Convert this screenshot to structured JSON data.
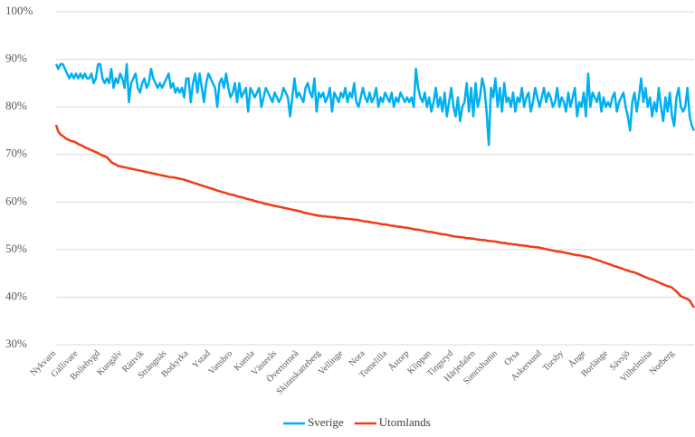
{
  "chart_data": {
    "type": "line",
    "ylim": [
      30,
      100
    ],
    "yticks": [
      {
        "value": 30,
        "label": "30%"
      },
      {
        "value": 40,
        "label": "40%"
      },
      {
        "value": 50,
        "label": "50%"
      },
      {
        "value": 60,
        "label": "60%"
      },
      {
        "value": 70,
        "label": "70%"
      },
      {
        "value": 80,
        "label": "80%"
      },
      {
        "value": 90,
        "label": "90%"
      },
      {
        "value": 100,
        "label": "100%"
      }
    ],
    "grid": true,
    "legend": "bottom",
    "categories": [
      "Nykvarn",
      null,
      null,
      null,
      null,
      null,
      null,
      null,
      null,
      null,
      "Gällivare",
      null,
      null,
      null,
      null,
      null,
      null,
      null,
      null,
      null,
      "Bollebygd",
      null,
      null,
      null,
      null,
      null,
      null,
      null,
      null,
      null,
      "Kungälv",
      null,
      null,
      null,
      null,
      null,
      null,
      null,
      null,
      null,
      "Rättvik",
      null,
      null,
      null,
      null,
      null,
      null,
      null,
      null,
      null,
      "Strängnäs",
      null,
      null,
      null,
      null,
      null,
      null,
      null,
      null,
      null,
      "Botkyrka",
      null,
      null,
      null,
      null,
      null,
      null,
      null,
      null,
      null,
      "Ystad",
      null,
      null,
      null,
      null,
      null,
      null,
      null,
      null,
      null,
      "Vansbro",
      null,
      null,
      null,
      null,
      null,
      null,
      null,
      null,
      null,
      "Kumla",
      null,
      null,
      null,
      null,
      null,
      null,
      null,
      null,
      null,
      "Västerås",
      null,
      null,
      null,
      null,
      null,
      null,
      null,
      null,
      null,
      "Övertorneå",
      null,
      null,
      null,
      null,
      null,
      null,
      null,
      null,
      null,
      "Skinnskatteberg",
      null,
      null,
      null,
      null,
      null,
      null,
      null,
      null,
      null,
      "Vellinge",
      null,
      null,
      null,
      null,
      null,
      null,
      null,
      null,
      null,
      "Nora",
      null,
      null,
      null,
      null,
      null,
      null,
      null,
      null,
      null,
      "Tomelilla",
      null,
      null,
      null,
      null,
      null,
      null,
      null,
      null,
      null,
      "Åstorp",
      null,
      null,
      null,
      null,
      null,
      null,
      null,
      null,
      null,
      "Klippan",
      null,
      null,
      null,
      null,
      null,
      null,
      null,
      null,
      null,
      "Tingsryd",
      null,
      null,
      null,
      null,
      null,
      null,
      null,
      null,
      null,
      "Härjedalen",
      null,
      null,
      null,
      null,
      null,
      null,
      null,
      null,
      null,
      "Simrishamn",
      null,
      null,
      null,
      null,
      null,
      null,
      null,
      null,
      null,
      "Orsa",
      null,
      null,
      null,
      null,
      null,
      null,
      null,
      null,
      null,
      "Askersund",
      null,
      null,
      null,
      null,
      null,
      null,
      null,
      null,
      null,
      "Torsby",
      null,
      null,
      null,
      null,
      null,
      null,
      null,
      null,
      null,
      "Ånge",
      null,
      null,
      null,
      null,
      null,
      null,
      null,
      null,
      null,
      "Borlänge",
      null,
      null,
      null,
      null,
      null,
      null,
      null,
      null,
      null,
      "Sävsjö",
      null,
      null,
      null,
      null,
      null,
      null,
      null,
      null,
      null,
      "Vilhelmina",
      null,
      null,
      null,
      null,
      null,
      null,
      null,
      null,
      null,
      "Norberg",
      null,
      null,
      null,
      null,
      null,
      null,
      null,
      null,
      null
    ],
    "series": [
      {
        "name": "Sverige",
        "color": "#00b0f0",
        "values": [
          89,
          88,
          89,
          89,
          88,
          87,
          86,
          87,
          86,
          87,
          86,
          87,
          86,
          87,
          86,
          86,
          87,
          85,
          86,
          89,
          89,
          86,
          85,
          86,
          85,
          88,
          84,
          86,
          85,
          87,
          86,
          84,
          89,
          81,
          85,
          86,
          87,
          84,
          83,
          85,
          86,
          84,
          85,
          88,
          86,
          85,
          84,
          85,
          84,
          85,
          86,
          87,
          84,
          85,
          83,
          84,
          83,
          84,
          82,
          86,
          86,
          81,
          85,
          87,
          83,
          87,
          84,
          81,
          85,
          87,
          86,
          85,
          84,
          80,
          85,
          86,
          84,
          87,
          84,
          82,
          83,
          85,
          81,
          85,
          82,
          83,
          84,
          79,
          84,
          83,
          82,
          83,
          84,
          80,
          82,
          84,
          83,
          82,
          81,
          83,
          82,
          81,
          82,
          84,
          83,
          82,
          78,
          82,
          86,
          82,
          83,
          82,
          81,
          84,
          85,
          83,
          82,
          86,
          79,
          83,
          82,
          83,
          81,
          82,
          84,
          79,
          83,
          82,
          81,
          83,
          82,
          84,
          81,
          83,
          82,
          85,
          81,
          80,
          82,
          84,
          82,
          81,
          83,
          81,
          82,
          84,
          80,
          82,
          81,
          83,
          82,
          81,
          83,
          80,
          82,
          81,
          83,
          82,
          81,
          82,
          81,
          82,
          80,
          88,
          84,
          82,
          81,
          83,
          80,
          82,
          79,
          81,
          84,
          80,
          82,
          79,
          83,
          78,
          81,
          84,
          80,
          78,
          82,
          77,
          80,
          81,
          85,
          79,
          84,
          78,
          85,
          80,
          82,
          86,
          84,
          79,
          72,
          84,
          82,
          86,
          80,
          84,
          79,
          85,
          81,
          82,
          80,
          83,
          79,
          82,
          81,
          84,
          80,
          82,
          83,
          79,
          81,
          84,
          82,
          80,
          82,
          84,
          81,
          83,
          82,
          80,
          81,
          84,
          80,
          82,
          81,
          79,
          83,
          80,
          82,
          84,
          78,
          81,
          80,
          83,
          78,
          87,
          80,
          83,
          82,
          81,
          83,
          79,
          82,
          80,
          81,
          80,
          82,
          83,
          79,
          81,
          82,
          83,
          80,
          78,
          75,
          81,
          83,
          79,
          82,
          86,
          81,
          84,
          80,
          82,
          78,
          81,
          79,
          84,
          80,
          77,
          82,
          79,
          83,
          78,
          76,
          82,
          84,
          80,
          79,
          80,
          84,
          78,
          76,
          75
        ]
      },
      {
        "name": "Utomlands",
        "color": "#f03c14",
        "values": [
          76.2,
          74.8,
          74.2,
          73.9,
          73.5,
          73.2,
          73.0,
          72.8,
          72.7,
          72.5,
          72.2,
          72.0,
          71.8,
          71.5,
          71.3,
          71.1,
          70.9,
          70.7,
          70.5,
          70.3,
          70.0,
          69.8,
          69.6,
          69.4,
          68.9,
          68.4,
          68.1,
          67.9,
          67.6,
          67.5,
          67.4,
          67.3,
          67.2,
          67.1,
          67.0,
          66.9,
          66.8,
          66.7,
          66.6,
          66.5,
          66.4,
          66.3,
          66.2,
          66.1,
          66.0,
          65.9,
          65.8,
          65.7,
          65.6,
          65.5,
          65.4,
          65.3,
          65.2,
          65.2,
          65.1,
          65.0,
          64.9,
          64.8,
          64.7,
          64.5,
          64.4,
          64.2,
          64.1,
          63.9,
          63.8,
          63.6,
          63.5,
          63.3,
          63.2,
          63.0,
          62.9,
          62.7,
          62.6,
          62.4,
          62.3,
          62.1,
          62.0,
          61.9,
          61.7,
          61.6,
          61.5,
          61.4,
          61.2,
          61.1,
          61.0,
          60.9,
          60.7,
          60.6,
          60.5,
          60.4,
          60.2,
          60.1,
          60.0,
          59.9,
          59.7,
          59.6,
          59.5,
          59.4,
          59.3,
          59.2,
          59.1,
          59.0,
          58.9,
          58.8,
          58.7,
          58.6,
          58.5,
          58.4,
          58.3,
          58.2,
          58.1,
          58.0,
          57.8,
          57.7,
          57.6,
          57.5,
          57.4,
          57.3,
          57.2,
          57.1,
          57.1,
          57.0,
          57.0,
          56.9,
          56.9,
          56.8,
          56.8,
          56.7,
          56.7,
          56.6,
          56.6,
          56.5,
          56.5,
          56.4,
          56.4,
          56.3,
          56.3,
          56.2,
          56.1,
          56.0,
          55.9,
          55.9,
          55.8,
          55.7,
          55.6,
          55.6,
          55.5,
          55.4,
          55.3,
          55.3,
          55.2,
          55.1,
          55.0,
          55.0,
          54.9,
          54.8,
          54.8,
          54.7,
          54.6,
          54.6,
          54.5,
          54.4,
          54.3,
          54.2,
          54.2,
          54.1,
          54.0,
          53.9,
          53.8,
          53.7,
          53.7,
          53.6,
          53.5,
          53.4,
          53.3,
          53.2,
          53.2,
          53.1,
          53.0,
          52.9,
          52.8,
          52.7,
          52.7,
          52.6,
          52.6,
          52.5,
          52.4,
          52.4,
          52.3,
          52.3,
          52.2,
          52.1,
          52.1,
          52.0,
          52.0,
          51.9,
          51.8,
          51.8,
          51.7,
          51.7,
          51.6,
          51.5,
          51.4,
          51.4,
          51.3,
          51.2,
          51.2,
          51.1,
          51.1,
          51.0,
          50.9,
          50.9,
          50.8,
          50.8,
          50.7,
          50.6,
          50.6,
          50.5,
          50.5,
          50.4,
          50.3,
          50.2,
          50.1,
          50.0,
          49.9,
          49.8,
          49.7,
          49.6,
          49.6,
          49.5,
          49.4,
          49.3,
          49.2,
          49.1,
          49.0,
          48.9,
          48.8,
          48.8,
          48.7,
          48.6,
          48.5,
          48.4,
          48.3,
          48.1,
          48.0,
          47.8,
          47.7,
          47.5,
          47.3,
          47.2,
          47.0,
          46.9,
          46.7,
          46.5,
          46.4,
          46.2,
          46.1,
          45.9,
          45.7,
          45.6,
          45.4,
          45.3,
          45.2,
          45.0,
          44.8,
          44.6,
          44.4,
          44.2,
          44.0,
          43.8,
          43.7,
          43.5,
          43.3,
          43.1,
          42.9,
          42.7,
          42.5,
          42.3,
          42.2,
          42.0,
          41.6,
          41.2,
          40.7,
          40.2,
          40.0,
          39.8,
          39.6,
          39.3,
          38.5,
          37.8
        ]
      }
    ]
  }
}
